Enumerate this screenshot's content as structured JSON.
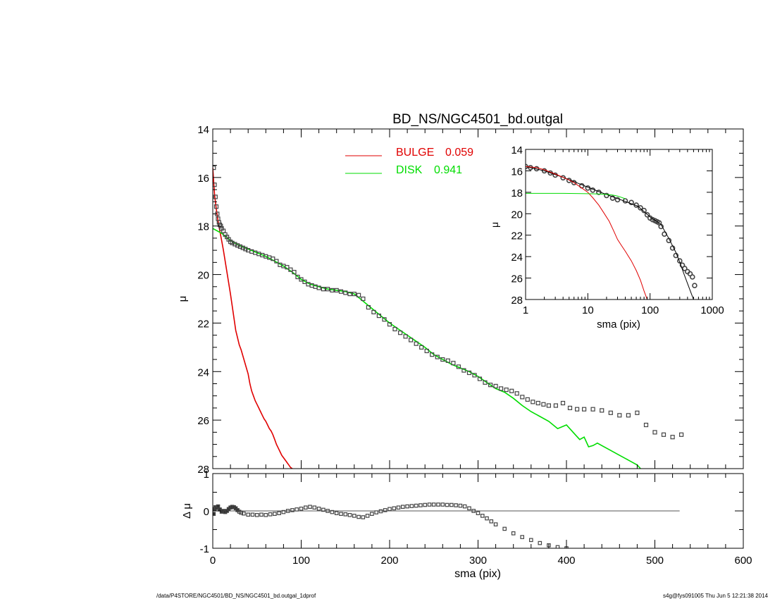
{
  "chart_data": [
    {
      "type": "scatter",
      "panel": "main",
      "title": "BD_NS/NGC4501_bd.outgal",
      "xlabel": "",
      "ylabel": "μ",
      "xlim": [
        0,
        600
      ],
      "ylim": [
        28,
        14
      ],
      "y_inverted": true,
      "yticks": [
        14,
        16,
        18,
        20,
        22,
        24,
        26,
        28
      ],
      "xticks": [
        0,
        100,
        200,
        300,
        400,
        500,
        600
      ],
      "xtick_labels_shown": false,
      "legend_position": "top-center",
      "legend": [
        {
          "name": "BULGE",
          "value": "0.059",
          "color": "#e00000"
        },
        {
          "name": "DISK",
          "value": "0.941",
          "color": "#00dd00"
        }
      ],
      "series": [
        {
          "name": "data",
          "kind": "points",
          "color": "#444444",
          "marker": "open-square",
          "x": [
            1,
            2,
            3,
            4,
            5,
            6,
            7,
            8,
            9,
            10,
            12,
            14,
            16,
            18,
            20,
            22,
            25,
            28,
            31,
            34,
            37,
            40,
            44,
            48,
            52,
            56,
            60,
            64,
            68,
            72,
            76,
            80,
            84,
            88,
            92,
            96,
            100,
            104,
            108,
            112,
            116,
            120,
            125,
            130,
            135,
            140,
            145,
            150,
            155,
            160,
            165,
            170,
            176,
            182,
            188,
            194,
            200,
            206,
            212,
            218,
            224,
            230,
            236,
            242,
            248,
            254,
            260,
            266,
            272,
            278,
            284,
            290,
            296,
            302,
            308,
            314,
            320,
            326,
            332,
            338,
            344,
            350,
            356,
            362,
            368,
            374,
            380,
            388,
            396,
            404,
            412,
            420,
            430,
            440,
            450,
            460,
            470,
            480,
            490,
            500,
            510,
            520,
            530
          ],
          "y": [
            15.6,
            16.3,
            16.8,
            17.2,
            17.5,
            17.7,
            17.85,
            17.95,
            18.0,
            18.1,
            18.2,
            18.35,
            18.45,
            18.55,
            18.65,
            18.7,
            18.75,
            18.8,
            18.85,
            18.9,
            18.95,
            19.0,
            19.05,
            19.1,
            19.15,
            19.2,
            19.25,
            19.3,
            19.35,
            19.45,
            19.6,
            19.65,
            19.7,
            19.8,
            19.9,
            20.1,
            20.2,
            20.3,
            20.4,
            20.45,
            20.5,
            20.55,
            20.6,
            20.6,
            20.65,
            20.65,
            20.7,
            20.75,
            20.8,
            20.8,
            20.85,
            21.0,
            21.35,
            21.55,
            21.7,
            21.85,
            22.05,
            22.25,
            22.4,
            22.55,
            22.7,
            22.85,
            23.0,
            23.15,
            23.3,
            23.4,
            23.5,
            23.55,
            23.65,
            23.8,
            23.95,
            24.05,
            24.15,
            24.3,
            24.45,
            24.55,
            24.6,
            24.7,
            24.75,
            24.8,
            24.9,
            25.05,
            25.15,
            25.25,
            25.3,
            25.35,
            25.4,
            25.4,
            25.3,
            25.5,
            25.55,
            25.55,
            25.55,
            25.6,
            25.7,
            25.8,
            25.8,
            25.7,
            26.2,
            26.5,
            26.6,
            26.7,
            26.6
          ]
        },
        {
          "name": "BULGE",
          "kind": "line",
          "color": "#e00000",
          "x": [
            0,
            2,
            4,
            6,
            8,
            10,
            12,
            14,
            16,
            18,
            20,
            22,
            24,
            26,
            28,
            30,
            32,
            34,
            36,
            38,
            40,
            42,
            44,
            46,
            48,
            50,
            52,
            54,
            56,
            58,
            60,
            62,
            64,
            66,
            68,
            70,
            72,
            74,
            76,
            78,
            80,
            82,
            84,
            86,
            88,
            90
          ],
          "y": [
            15.6,
            16.7,
            17.3,
            17.8,
            18.2,
            18.6,
            19.0,
            19.45,
            19.9,
            20.35,
            20.8,
            21.3,
            21.8,
            22.3,
            22.6,
            22.9,
            23.1,
            23.35,
            23.6,
            23.85,
            24.1,
            24.5,
            24.8,
            25.0,
            25.2,
            25.35,
            25.5,
            25.65,
            25.8,
            25.95,
            26.05,
            26.2,
            26.35,
            26.45,
            26.6,
            26.8,
            27.0,
            27.15,
            27.3,
            27.45,
            27.55,
            27.65,
            27.75,
            27.85,
            27.95,
            28.0
          ]
        },
        {
          "name": "DISK",
          "kind": "line",
          "color": "#00dd00",
          "x": [
            0,
            10,
            20,
            30,
            40,
            50,
            60,
            70,
            80,
            90,
            100,
            110,
            120,
            130,
            140,
            150,
            160,
            170,
            180,
            190,
            200,
            210,
            220,
            230,
            240,
            250,
            260,
            270,
            280,
            290,
            300,
            310,
            320,
            330,
            340,
            350,
            360,
            370,
            380,
            390,
            400,
            410,
            415,
            420,
            425,
            430,
            435,
            440,
            450,
            460,
            470,
            480,
            485
          ],
          "y": [
            18.1,
            18.3,
            18.6,
            18.8,
            18.95,
            19.1,
            19.25,
            19.45,
            19.65,
            19.9,
            20.2,
            20.4,
            20.5,
            20.6,
            20.65,
            20.7,
            20.8,
            21.1,
            21.4,
            21.7,
            22.0,
            22.25,
            22.5,
            22.75,
            23.0,
            23.3,
            23.5,
            23.7,
            23.85,
            24.0,
            24.2,
            24.45,
            24.7,
            24.85,
            25.1,
            25.4,
            25.65,
            25.85,
            26.05,
            26.35,
            26.2,
            26.6,
            26.8,
            26.7,
            27.1,
            27.05,
            26.95,
            27.05,
            27.25,
            27.45,
            27.65,
            27.85,
            28.05
          ]
        }
      ]
    },
    {
      "type": "scatter",
      "panel": "residuals",
      "xlabel": "sma (pix)",
      "ylabel": "Δ μ",
      "xlim": [
        0,
        600
      ],
      "ylim": [
        -1,
        1
      ],
      "xticks": [
        0,
        100,
        200,
        300,
        400,
        500,
        600
      ],
      "yticks": [
        -1,
        0,
        1
      ],
      "zero_line_x": [
        0,
        528
      ],
      "series": [
        {
          "name": "residual",
          "kind": "points",
          "color": "#444444",
          "marker": "open-square",
          "x": [
            1,
            2,
            3,
            4,
            6,
            8,
            10,
            12,
            14,
            16,
            18,
            20,
            22,
            24,
            26,
            28,
            30,
            32,
            35,
            40,
            45,
            50,
            55,
            60,
            65,
            70,
            75,
            80,
            85,
            90,
            95,
            100,
            105,
            110,
            115,
            120,
            125,
            130,
            135,
            140,
            145,
            150,
            155,
            160,
            165,
            170,
            175,
            180,
            185,
            190,
            195,
            200,
            205,
            210,
            215,
            220,
            225,
            230,
            235,
            240,
            245,
            250,
            255,
            260,
            265,
            270,
            275,
            280,
            285,
            290,
            295,
            300,
            305,
            310,
            315,
            320,
            330,
            340,
            350,
            360,
            370,
            380,
            390,
            400
          ],
          "y": [
            -0.08,
            0.05,
            0.1,
            0.08,
            0.12,
            0.04,
            -0.02,
            0.0,
            -0.03,
            0.0,
            0.05,
            0.09,
            0.11,
            0.1,
            0.07,
            0.02,
            -0.02,
            -0.05,
            -0.07,
            -0.1,
            -0.1,
            -0.11,
            -0.1,
            -0.11,
            -0.09,
            -0.08,
            -0.06,
            -0.03,
            0.0,
            0.02,
            0.04,
            0.06,
            0.09,
            0.11,
            0.09,
            0.06,
            0.03,
            0.0,
            -0.03,
            -0.06,
            -0.08,
            -0.09,
            -0.11,
            -0.13,
            -0.16,
            -0.17,
            -0.13,
            -0.08,
            -0.04,
            -0.01,
            0.02,
            0.05,
            0.07,
            0.09,
            0.11,
            0.12,
            0.13,
            0.14,
            0.15,
            0.16,
            0.17,
            0.17,
            0.17,
            0.17,
            0.16,
            0.16,
            0.15,
            0.14,
            0.12,
            0.07,
            0.0,
            -0.06,
            -0.13,
            -0.2,
            -0.28,
            -0.36,
            -0.48,
            -0.6,
            -0.7,
            -0.78,
            -0.86,
            -0.92,
            -0.97,
            -1.0
          ]
        }
      ]
    },
    {
      "type": "line",
      "panel": "inset",
      "xlabel": "sma (pix)",
      "ylabel": "μ",
      "x_scale": "log",
      "xlim": [
        1,
        1000
      ],
      "ylim": [
        28,
        14
      ],
      "y_inverted": true,
      "xtick_labels": [
        "1",
        "10",
        "100",
        "1000"
      ],
      "yticks": [
        14,
        16,
        18,
        20,
        22,
        24,
        26,
        28
      ],
      "series": [
        {
          "name": "data",
          "kind": "points",
          "color": "#444444",
          "marker": "open-circle",
          "x": [
            1,
            1.2,
            1.5,
            2,
            2.5,
            3,
            4,
            5,
            6,
            8,
            10,
            12,
            15,
            20,
            25,
            30,
            40,
            50,
            60,
            70,
            80,
            90,
            100,
            110,
            120,
            130,
            140,
            150,
            170,
            200,
            230,
            260,
            300,
            330,
            360,
            400,
            440,
            480,
            520
          ],
          "y": [
            15.6,
            15.7,
            15.8,
            16.0,
            16.2,
            16.4,
            16.65,
            16.9,
            17.1,
            17.4,
            17.6,
            17.8,
            18.0,
            18.3,
            18.55,
            18.7,
            18.8,
            18.95,
            19.2,
            19.45,
            19.7,
            20.1,
            20.4,
            20.55,
            20.65,
            20.75,
            20.85,
            21.2,
            21.9,
            22.5,
            23.2,
            23.9,
            24.4,
            24.8,
            25.1,
            25.4,
            25.6,
            25.9,
            26.7
          ]
        },
        {
          "name": "total-model",
          "kind": "line",
          "color": "#000000",
          "x": [
            1,
            2,
            4,
            8,
            16,
            32,
            64,
            100,
            150,
            200,
            260,
            300,
            350,
            400,
            450,
            500
          ],
          "y": [
            15.6,
            16.0,
            16.6,
            17.3,
            18.0,
            18.65,
            19.3,
            20.3,
            21.0,
            22.3,
            23.6,
            24.5,
            25.6,
            26.5,
            27.3,
            28.0
          ]
        },
        {
          "name": "BULGE",
          "kind": "line",
          "color": "#e00000",
          "x": [
            1,
            1.5,
            2,
            3,
            4,
            5,
            6,
            8,
            10,
            12,
            15,
            18,
            22,
            26,
            30,
            35,
            40,
            50,
            60,
            70,
            80,
            90
          ],
          "y": [
            15.6,
            15.7,
            15.9,
            16.3,
            16.6,
            16.85,
            17.1,
            17.6,
            18.0,
            18.5,
            19.2,
            19.9,
            20.7,
            21.6,
            22.4,
            23.0,
            23.5,
            24.4,
            25.3,
            26.2,
            27.2,
            28.0
          ]
        },
        {
          "name": "DISK",
          "kind": "line",
          "color": "#00dd00",
          "x": [
            1,
            2,
            4,
            8,
            12,
            16,
            20,
            25,
            30,
            40
          ],
          "y": [
            18.1,
            18.1,
            18.1,
            18.12,
            18.14,
            18.17,
            18.2,
            18.25,
            18.35,
            18.6
          ]
        }
      ]
    }
  ],
  "footer": {
    "left": "/data/P4STORE/NGC4501/BD_NS/NGC4501_bd.outgal_1dprof",
    "right": "s4g@fys091005  Thu Jun  5 12:21:38 2014"
  }
}
